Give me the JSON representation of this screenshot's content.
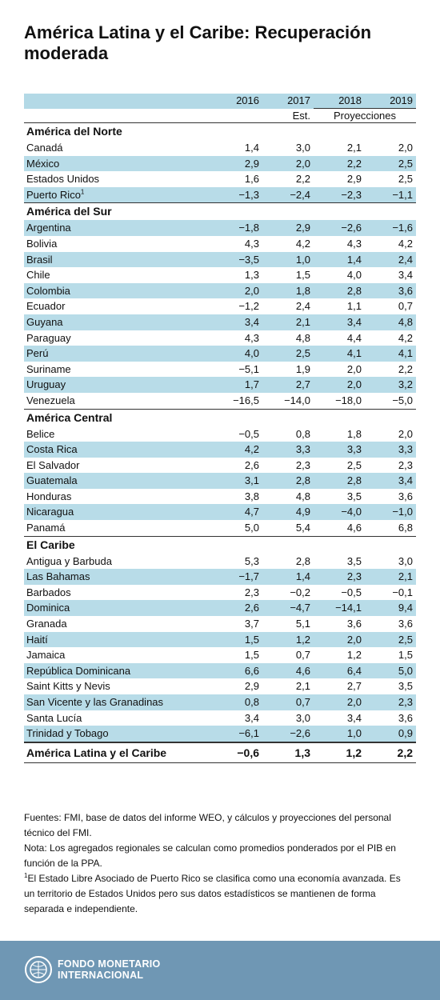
{
  "title": "América Latina y el Caribe: Recuperación moderada",
  "table": {
    "years": [
      "2016",
      "2017",
      "2018",
      "2019"
    ],
    "subheader": {
      "estimate": "Est.",
      "projections": "Proyecciones"
    },
    "sections": [
      {
        "name": "América del Norte",
        "rows": [
          {
            "label": "Canadá",
            "values": [
              "1,4",
              "3,0",
              "2,1",
              "2,0"
            ]
          },
          {
            "label": "México",
            "values": [
              "2,9",
              "2,0",
              "2,2",
              "2,5"
            ]
          },
          {
            "label": "Estados Unidos",
            "values": [
              "1,6",
              "2,2",
              "2,9",
              "2,5"
            ]
          },
          {
            "label": "Puerto Rico",
            "note": "1",
            "values": [
              "−1,3",
              "−2,4",
              "−2,3",
              "−1,1"
            ]
          }
        ]
      },
      {
        "name": "América del Sur",
        "rows": [
          {
            "label": "Argentina",
            "values": [
              "−1,8",
              "2,9",
              "−2,6",
              "−1,6"
            ]
          },
          {
            "label": "Bolivia",
            "values": [
              "4,3",
              "4,2",
              "4,3",
              "4,2"
            ]
          },
          {
            "label": "Brasil",
            "values": [
              "−3,5",
              "1,0",
              "1,4",
              "2,4"
            ]
          },
          {
            "label": "Chile",
            "values": [
              "1,3",
              "1,5",
              "4,0",
              "3,4"
            ]
          },
          {
            "label": "Colombia",
            "values": [
              "2,0",
              "1,8",
              "2,8",
              "3,6"
            ]
          },
          {
            "label": "Ecuador",
            "values": [
              "−1,2",
              "2,4",
              "1,1",
              "0,7"
            ]
          },
          {
            "label": "Guyana",
            "values": [
              "3,4",
              "2,1",
              "3,4",
              "4,8"
            ]
          },
          {
            "label": "Paraguay",
            "values": [
              "4,3",
              "4,8",
              "4,4",
              "4,2"
            ]
          },
          {
            "label": "Perú",
            "values": [
              "4,0",
              "2,5",
              "4,1",
              "4,1"
            ]
          },
          {
            "label": "Suriname",
            "values": [
              "−5,1",
              "1,9",
              "2,0",
              "2,2"
            ]
          },
          {
            "label": "Uruguay",
            "values": [
              "1,7",
              "2,7",
              "2,0",
              "3,2"
            ]
          },
          {
            "label": "Venezuela",
            "values": [
              "−16,5",
              "−14,0",
              "−18,0",
              "−5,0"
            ]
          }
        ]
      },
      {
        "name": "América Central",
        "rows": [
          {
            "label": "Belice",
            "values": [
              "−0,5",
              "0,8",
              "1,8",
              "2,0"
            ]
          },
          {
            "label": "Costa Rica",
            "values": [
              "4,2",
              "3,3",
              "3,3",
              "3,3"
            ]
          },
          {
            "label": "El Salvador",
            "values": [
              "2,6",
              "2,3",
              "2,5",
              "2,3"
            ]
          },
          {
            "label": "Guatemala",
            "values": [
              "3,1",
              "2,8",
              "2,8",
              "3,4"
            ]
          },
          {
            "label": "Honduras",
            "values": [
              "3,8",
              "4,8",
              "3,5",
              "3,6"
            ]
          },
          {
            "label": "Nicaragua",
            "values": [
              "4,7",
              "4,9",
              "−4,0",
              "−1,0"
            ]
          },
          {
            "label": "Panamá",
            "values": [
              "5,0",
              "5,4",
              "4,6",
              "6,8"
            ]
          }
        ]
      },
      {
        "name": "El Caribe",
        "rows": [
          {
            "label": "Antigua y Barbuda",
            "values": [
              "5,3",
              "2,8",
              "3,5",
              "3,0"
            ]
          },
          {
            "label": "Las Bahamas",
            "values": [
              "−1,7",
              "1,4",
              "2,3",
              "2,1"
            ]
          },
          {
            "label": "Barbados",
            "values": [
              "2,3",
              "−0,2",
              "−0,5",
              "−0,1"
            ]
          },
          {
            "label": "Dominica",
            "values": [
              "2,6",
              "−4,7",
              "−14,1",
              "9,4"
            ]
          },
          {
            "label": "Granada",
            "values": [
              "3,7",
              "5,1",
              "3,6",
              "3,6"
            ]
          },
          {
            "label": "Haití",
            "values": [
              "1,5",
              "1,2",
              "2,0",
              "2,5"
            ]
          },
          {
            "label": "Jamaica",
            "values": [
              "1,5",
              "0,7",
              "1,2",
              "1,5"
            ]
          },
          {
            "label": "República Dominicana",
            "values": [
              "6,6",
              "4,6",
              "6,4",
              "5,0"
            ]
          },
          {
            "label": "Saint Kitts y Nevis",
            "values": [
              "2,9",
              "2,1",
              "2,7",
              "3,5"
            ]
          },
          {
            "label": "San Vicente y las Granadinas",
            "values": [
              "0,8",
              "0,7",
              "2,0",
              "2,3"
            ]
          },
          {
            "label": "Santa Lucía",
            "values": [
              "3,4",
              "3,0",
              "3,4",
              "3,6"
            ]
          },
          {
            "label": "Trinidad y Tobago",
            "values": [
              "−6,1",
              "−2,6",
              "1,0",
              "0,9"
            ]
          }
        ]
      }
    ],
    "total": {
      "label": "América Latina y el Caribe",
      "values": [
        "−0,6",
        "1,3",
        "1,2",
        "2,2"
      ]
    }
  },
  "notes": [
    {
      "text": "Fuentes: FMI, base de datos del informe WEO, y cálculos y proyecciones del personal técnico del FMI."
    },
    {
      "text": "Nota: Los agregados regionales se calculan como promedios ponderados por el PIB en función de la PPA."
    },
    {
      "mark": "1",
      "text": "El Estado Libre Asociado de Puerto Rico se clasifica como una economía avanzada. Es un territorio de Estados Unidos pero sus datos estadísticos se mantienen de forma separada e independiente."
    }
  ],
  "footer": {
    "logo": [
      "FONDO MONETARIO",
      "INTERNACIONAL"
    ]
  }
}
